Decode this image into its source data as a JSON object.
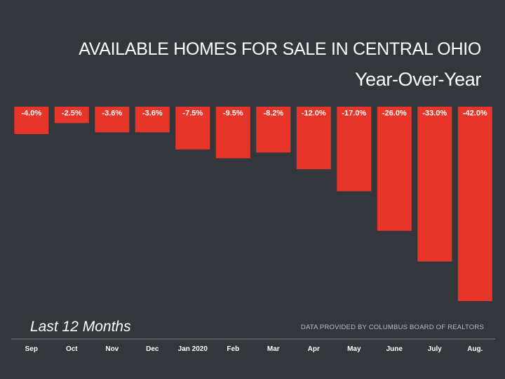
{
  "chart_data": {
    "type": "bar",
    "title": "AVAILABLE HOMES FOR SALE IN CENTRAL OHIO",
    "subtitle": "Year-Over-Year",
    "period_label": "Last 12 Months",
    "source": "DATA PROVIDED BY COLUMBUS BOARD OF REALTORS",
    "categories": [
      "Sep",
      "Oct",
      "Nov",
      "Dec",
      "Jan 2020",
      "Feb",
      "Mar",
      "Apr",
      "May",
      "June",
      "July",
      "Aug."
    ],
    "values": [
      -4.0,
      -2.5,
      -3.6,
      -3.6,
      -7.5,
      -9.5,
      -8.2,
      -12.0,
      -17.0,
      -26.0,
      -33.0,
      -42.0
    ],
    "labels": [
      "-4.0%",
      "-2.5%",
      "-3.6%",
      "-3.6%",
      "-7.5%",
      "-9.5%",
      "-8.2%",
      "-12.0%",
      "-17.0%",
      "-26.0%",
      "-33.0%",
      "-42.0%"
    ],
    "ylim": [
      -42,
      0
    ],
    "bar_color": "#e8352a",
    "background_color": "#33363b",
    "grid": false,
    "legend": "none"
  }
}
